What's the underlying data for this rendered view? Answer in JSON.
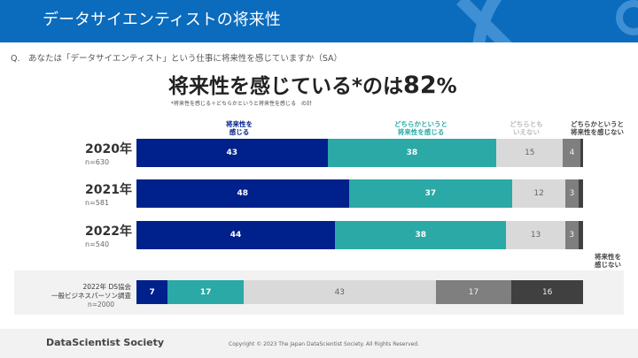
{
  "header": {
    "title": "データサイエンティストの将来性"
  },
  "question": "Q.　あなたは「データサイエンティスト」という仕事に将来性を感じていますか（SA）",
  "headline": {
    "text": "将来性を感じている*のは",
    "value": "82",
    "unit": "%"
  },
  "note": "*将来性を感じる＋どちらかというと将来性を感じる　の計",
  "colors": {
    "header": "#0b6bbd",
    "c1": "#00208c",
    "c2": "#2aa9a6",
    "c3": "#d9d9d9",
    "c4": "#7f7f7f",
    "c5": "#404040"
  },
  "chart_data": {
    "type": "bar",
    "orientation": "horizontal-stacked-100",
    "legend": [
      "将来性を\n感じる",
      "どちらかというと\n将来性を感じる",
      "どちらとも\nいえない",
      "どちらかというと\n将来性を感じない",
      "将来性を\n感じない"
    ],
    "rows": [
      {
        "label": "2020年",
        "n": "n=630",
        "values": [
          43,
          38,
          15,
          4,
          0.5
        ]
      },
      {
        "label": "2021年",
        "n": "n=581",
        "values": [
          48,
          37,
          12,
          3,
          1
        ]
      },
      {
        "label": "2022年",
        "n": "n=540",
        "values": [
          44,
          38,
          13,
          3,
          1
        ]
      }
    ],
    "comparison": {
      "label": [
        "2022年 DS協会",
        "一般ビジネスパーソン調査"
      ],
      "n": "n=2000",
      "values": [
        7,
        17,
        43,
        17,
        16
      ]
    }
  },
  "footer": {
    "brand": "DataScientist Society",
    "copyright": "Copyright © 2023  The Japan DataScientist Society. All Rights Reserved."
  }
}
